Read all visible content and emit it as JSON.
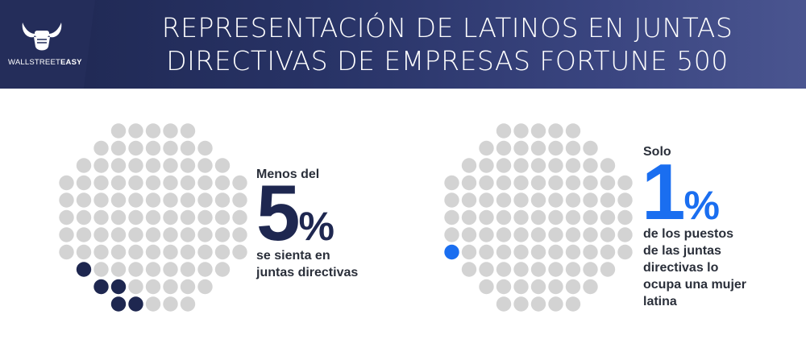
{
  "header": {
    "title_line1": "REPRESENTACIÓN DE LATINOS EN JUNTAS",
    "title_line2": "DIRECTIVAS DE EMPRESAS FORTUNE 500",
    "logo_text_light": "WALLSTREET",
    "logo_text_bold": "EASY",
    "logo_icon": "bull-horns-fist-icon"
  },
  "left_stat": {
    "prefix": "Menos del",
    "number": "5",
    "percent_sign": "%",
    "suffix_line1": "se sienta en",
    "suffix_line2": "juntas directivas",
    "highlight_count": 5,
    "total_dots": 100,
    "highlight_color": "#1e2750",
    "dot_icon": "person-dot-icon"
  },
  "right_stat": {
    "prefix": "Solo",
    "number": "1",
    "percent_sign": "%",
    "suffix_line1": "de los puestos",
    "suffix_line2": "de las juntas",
    "suffix_line3": "directivas lo",
    "suffix_line4": "ocupa una mujer",
    "suffix_line5": "latina",
    "highlight_count": 1,
    "total_dots": 100,
    "highlight_color": "#1a6ef0",
    "dot_icon": "person-dot-icon"
  },
  "colors": {
    "header_dark": "#1e2750",
    "header_light": "#4a5590",
    "dot_gray": "#d3d3d3",
    "text_dark": "#2a2f3a"
  }
}
